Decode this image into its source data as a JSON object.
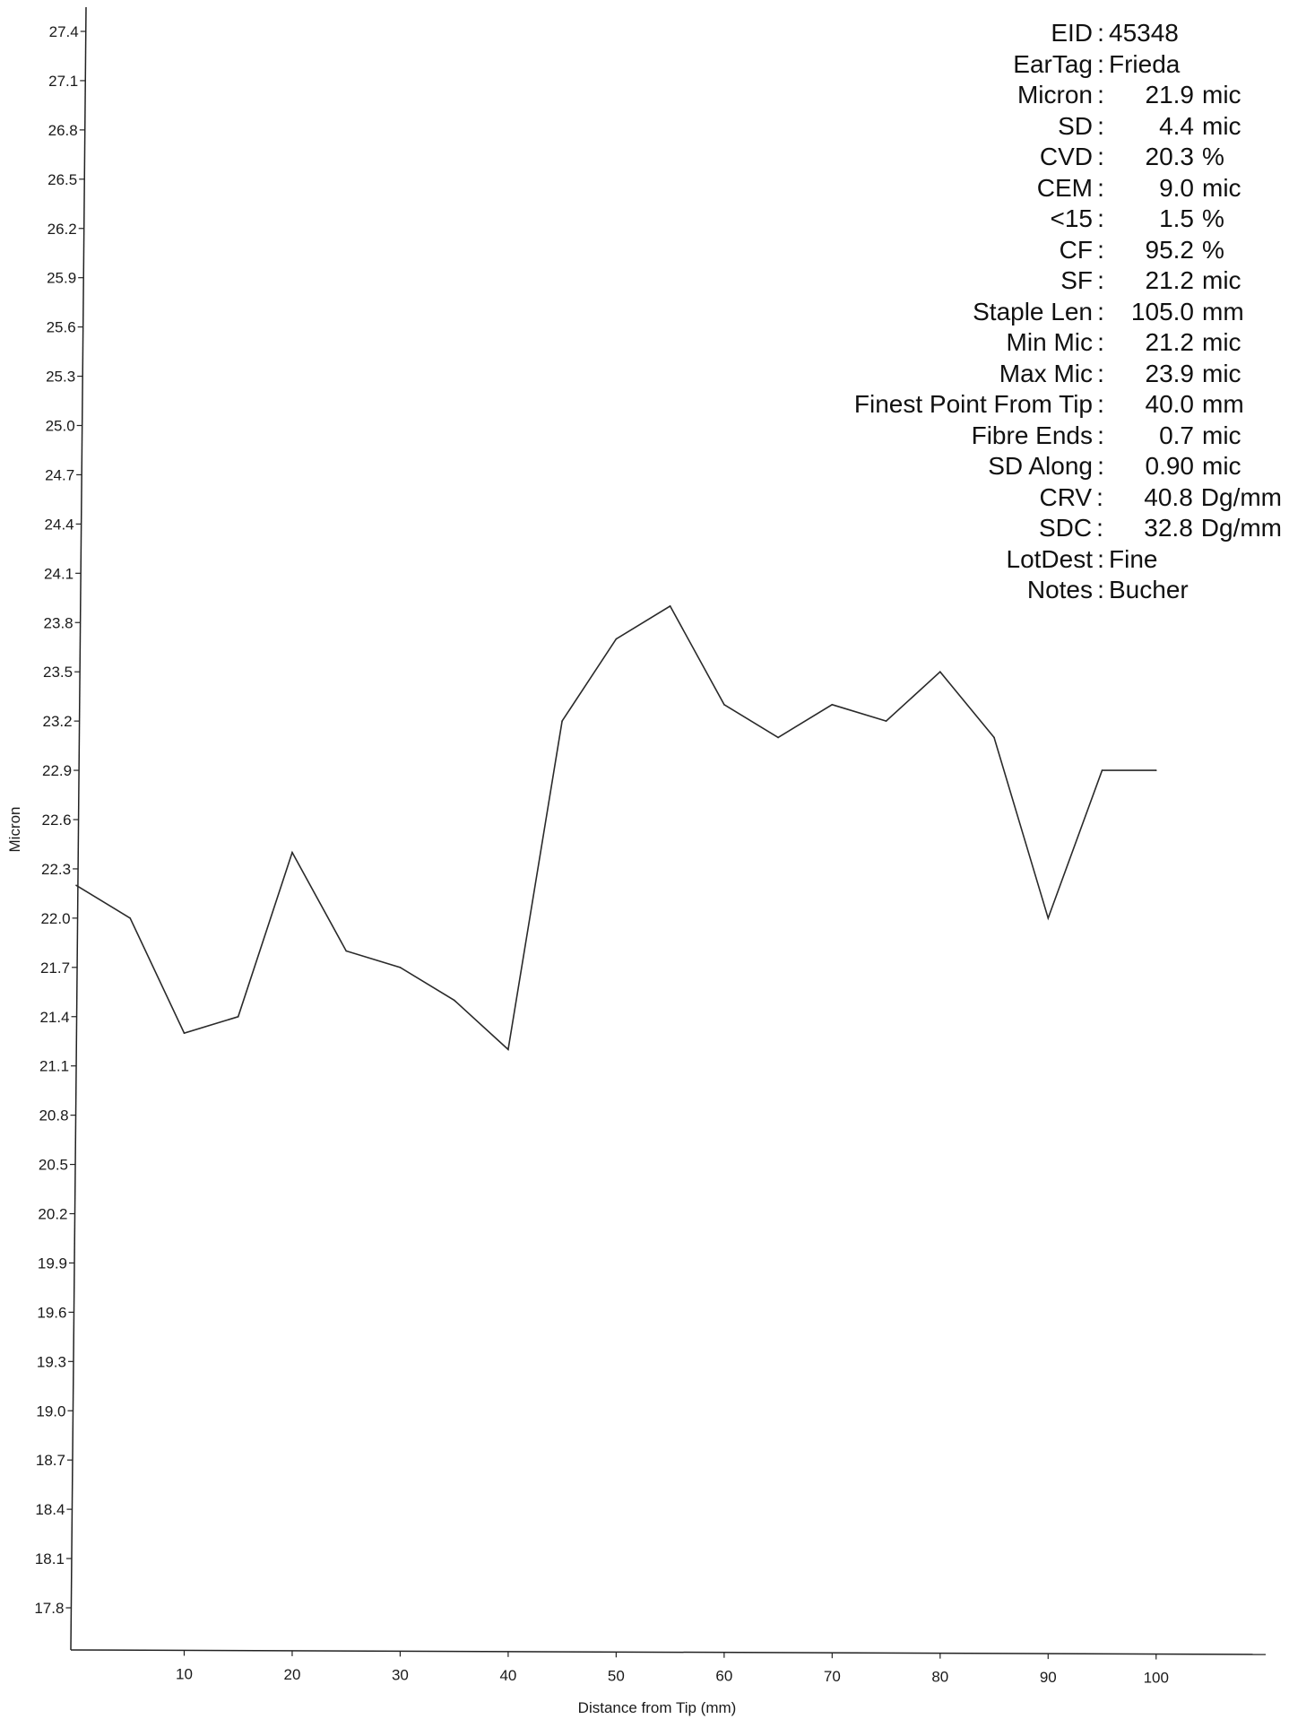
{
  "chart_data": {
    "type": "line",
    "xlabel": "Distance from Tip (mm)",
    "ylabel": "Micron",
    "xlim": [
      0,
      105
    ],
    "ylim": [
      17.5,
      27.5
    ],
    "x_ticks": [
      "10",
      "20",
      "30",
      "40",
      "50",
      "60",
      "70",
      "80",
      "90",
      "100"
    ],
    "y_ticks": [
      "27.4",
      "27.1",
      "26.8",
      "26.5",
      "26.2",
      "25.9",
      "25.6",
      "25.3",
      "25.0",
      "24.7",
      "24.4",
      "24.1",
      "23.8",
      "23.5",
      "23.2",
      "22.9",
      "22.6",
      "22.3",
      "22.0",
      "21.7",
      "21.4",
      "21.1",
      "20.8",
      "20.5",
      "20.2",
      "19.9",
      "19.6",
      "19.3",
      "19.0",
      "18.7",
      "18.4",
      "18.1",
      "17.8"
    ],
    "grid": false,
    "series": [
      {
        "x": [
          0,
          5,
          10,
          15,
          20,
          25,
          30,
          35,
          40,
          45,
          50,
          55,
          60,
          65,
          70,
          75,
          80,
          85,
          90,
          95,
          100
        ],
        "values": [
          22.2,
          22.0,
          21.3,
          21.4,
          22.4,
          21.8,
          21.7,
          21.5,
          21.2,
          23.2,
          23.7,
          23.9,
          23.3,
          23.1,
          23.3,
          23.2,
          23.5,
          23.1,
          22.0,
          22.9,
          22.9
        ]
      }
    ]
  },
  "stats": [
    {
      "label": "EID",
      "value": "45348",
      "unit": ""
    },
    {
      "label": "EarTag",
      "value": "Frieda",
      "unit": ""
    },
    {
      "label": "Micron",
      "value": "21.9",
      "unit": "mic"
    },
    {
      "label": "SD",
      "value": "4.4",
      "unit": "mic"
    },
    {
      "label": "CVD",
      "value": "20.3",
      "unit": "%"
    },
    {
      "label": "CEM",
      "value": "9.0",
      "unit": "mic"
    },
    {
      "label": "<15",
      "value": "1.5",
      "unit": "%"
    },
    {
      "label": "CF",
      "value": "95.2",
      "unit": "%"
    },
    {
      "label": "SF",
      "value": "21.2",
      "unit": "mic"
    },
    {
      "label": "Staple Len",
      "value": "105.0",
      "unit": "mm"
    },
    {
      "label": "Min Mic",
      "value": "21.2",
      "unit": "mic"
    },
    {
      "label": "Max Mic",
      "value": "23.9",
      "unit": "mic"
    },
    {
      "label": "Finest Point From Tip",
      "value": "40.0",
      "unit": "mm"
    },
    {
      "label": "Fibre Ends",
      "value": "0.7",
      "unit": "mic"
    },
    {
      "label": "SD Along",
      "value": "0.90",
      "unit": "mic"
    },
    {
      "label": "CRV",
      "value": "40.8",
      "unit": "Dg/mm"
    },
    {
      "label": "SDC",
      "value": "32.8",
      "unit": "Dg/mm"
    },
    {
      "label": "LotDest",
      "value": "Fine",
      "unit": ""
    },
    {
      "label": "Notes",
      "value": "Bucher",
      "unit": ""
    }
  ]
}
